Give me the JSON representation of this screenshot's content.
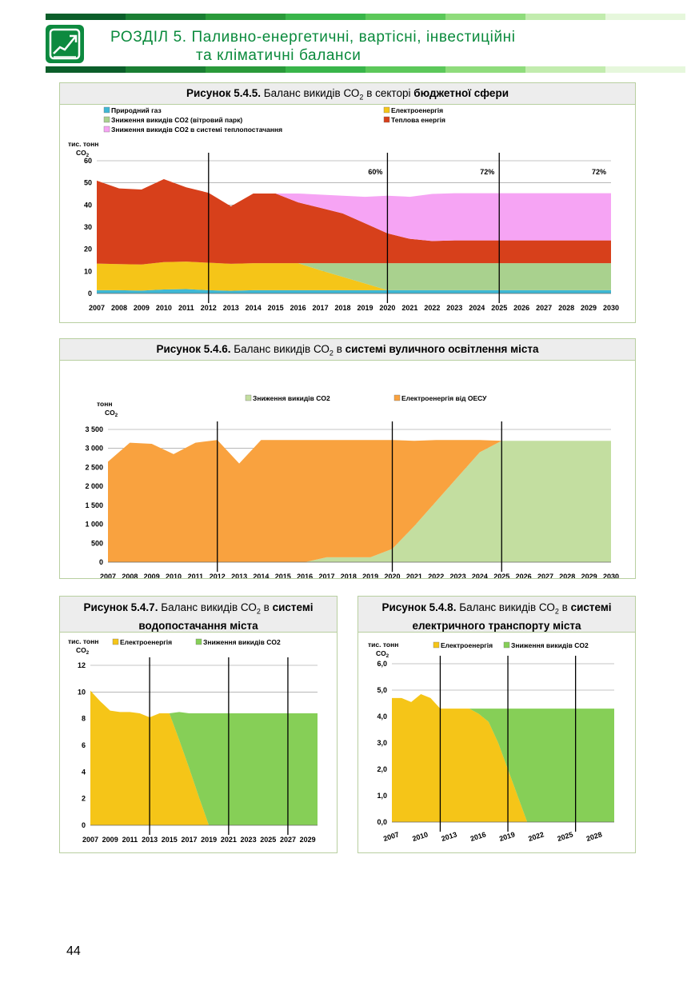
{
  "header": {
    "section_prefix": "РОЗДІЛ 5.",
    "title_line1": "Паливно-енергетичні,  вартісні,  інвестиційні",
    "title_line2": "та  кліматичні  баланси"
  },
  "page_number": "44",
  "colors": {
    "green_dark": "#0d8a3f",
    "gas": "#3fb8d4",
    "electricity": "#f5c518",
    "wind_reduction": "#a9d18e",
    "heat": "#d7401b",
    "heat_reduction": "#f6a4f4",
    "street_reduction": "#c3dea0",
    "street_electricity": "#f9a23f",
    "water_reduction": "#86cf57"
  },
  "figures": {
    "f545": {
      "num": "Рисунок 5.4.5.",
      "caption_plain": "Баланс викидів СО",
      "caption_after_sub": "в секторі",
      "caption_bold": "бюджетної сфери",
      "sub": "2"
    },
    "f546": {
      "num": "Рисунок 5.4.6.",
      "caption_plain": "Баланс викидів СО",
      "caption_after_sub": "в",
      "caption_bold": "системі вуличного освітлення міста",
      "sub": "2"
    },
    "f547": {
      "num": "Рисунок 5.4.7.",
      "caption_plain": "Баланс викидів СО",
      "caption_after_sub": "в",
      "caption_bold": "системі",
      "caption_line2": "водопостачання міста",
      "sub": "2"
    },
    "f548": {
      "num": "Рисунок 5.4.8.",
      "caption_plain": "Баланс викидів СО",
      "caption_after_sub": "в",
      "caption_bold": "системі",
      "caption_line2": "електричного транспорту міста",
      "sub": "2"
    }
  },
  "chart_data": [
    {
      "id": "budget_sector",
      "type": "area",
      "stacked": true,
      "ylabel_line1": "тис. тонн",
      "ylabel_line2": "CO",
      "ylabel_sub": "2",
      "ylim": [
        0,
        60
      ],
      "yticks": [
        "0",
        "10",
        "20",
        "30",
        "40",
        "50",
        "60"
      ],
      "x": [
        "2007",
        "2008",
        "2009",
        "2010",
        "2011",
        "2012",
        "2013",
        "2014",
        "2015",
        "2016",
        "2017",
        "2018",
        "2019",
        "2020",
        "2021",
        "2022",
        "2023",
        "2024",
        "2025",
        "2026",
        "2027",
        "2028",
        "2029",
        "2030"
      ],
      "series": [
        {
          "name": "Природний газ",
          "color": "#3fb8d4",
          "values": [
            1.5,
            1.5,
            1.3,
            1.8,
            2.0,
            1.5,
            1.2,
            1.5,
            1.5,
            1.5,
            1.5,
            1.5,
            1.5,
            1.5,
            1.5,
            1.5,
            1.5,
            1.5,
            1.5,
            1.5,
            1.5,
            1.5,
            1.5,
            1.5
          ]
        },
        {
          "name": "Електроенергія",
          "color": "#f5c518",
          "values": [
            12.0,
            11.8,
            11.8,
            12.4,
            12.4,
            12.4,
            12.2,
            12.2,
            12.2,
            12.2,
            9.0,
            6.0,
            3.0,
            0,
            0,
            0,
            0,
            0,
            0,
            0,
            0,
            0,
            0,
            0
          ]
        },
        {
          "name": "Зниження викидів CO2  (вітровий парк)",
          "color": "#a9d18e",
          "values": [
            0,
            0,
            0,
            0,
            0,
            0,
            0,
            0,
            0,
            0,
            3.2,
            6.2,
            9.2,
            12.2,
            12.2,
            12.2,
            12.2,
            12.2,
            12.2,
            12.2,
            12.2,
            12.2,
            12.2,
            12.2
          ]
        },
        {
          "name": "Теплова енергія",
          "color": "#d7401b",
          "values": [
            37.5,
            34.2,
            33.9,
            37.5,
            33.6,
            31.6,
            26.0,
            31.5,
            31.5,
            27.5,
            25.0,
            22.5,
            18.0,
            13.5,
            11.0,
            10.0,
            10.3,
            10.3,
            10.3,
            10.3,
            10.3,
            10.3,
            10.3,
            10.3
          ]
        },
        {
          "name": "Зниження викидів CO2  в системі теплопостачання",
          "color": "#f6a4f4",
          "values": [
            0,
            0,
            0,
            0,
            0,
            0,
            0,
            0,
            0,
            4.0,
            6.0,
            8.0,
            12.0,
            17.0,
            19.0,
            21.3,
            21.3,
            21.3,
            21.3,
            21.3,
            21.3,
            21.3,
            21.3,
            21.3
          ]
        }
      ],
      "vlines": [
        "2012",
        "2020",
        "2025"
      ],
      "annotations": [
        {
          "text": "60%",
          "x": "2020"
        },
        {
          "text": "72%",
          "x": "2025"
        },
        {
          "text": "72%",
          "x": "2030"
        }
      ]
    },
    {
      "id": "street_lighting",
      "type": "area",
      "stacked": true,
      "ylabel_line1": "тонн",
      "ylabel_line2": "CO",
      "ylabel_sub": "2",
      "ylim": [
        0,
        3500
      ],
      "yticks": [
        "0",
        "500",
        "1 000",
        "1 500",
        "2 000",
        "2 500",
        "3 000",
        "3 500"
      ],
      "x": [
        "2007",
        "2008",
        "2009",
        "2010",
        "2011",
        "2012",
        "2013",
        "2014",
        "2015",
        "2016",
        "2017",
        "2018",
        "2019",
        "2020",
        "2021",
        "2022",
        "2023",
        "2024",
        "2025",
        "2026",
        "2027",
        "2028",
        "2029",
        "2030"
      ],
      "series": [
        {
          "name": "Зниження викидів CO2",
          "color": "#c3dea0",
          "values": [
            0,
            0,
            0,
            0,
            0,
            0,
            0,
            0,
            0,
            0,
            130,
            130,
            130,
            350,
            950,
            1600,
            2250,
            2900,
            3200,
            3200,
            3200,
            3200,
            3200,
            3200
          ]
        },
        {
          "name": "Електроенергія від ОЕСУ",
          "color": "#f9a23f",
          "values": [
            2650,
            3150,
            3120,
            2850,
            3150,
            3220,
            2600,
            3220,
            3220,
            3220,
            3090,
            3090,
            3090,
            2870,
            2250,
            1620,
            970,
            320,
            0,
            0,
            0,
            0,
            0,
            0
          ]
        }
      ],
      "vlines": [
        "2012",
        "2020",
        "2025"
      ]
    },
    {
      "id": "water_supply",
      "type": "area",
      "stacked": true,
      "ylabel_line1": "тис. тонн",
      "ylabel_line2": "CO",
      "ylabel_sub": "2",
      "ylim": [
        0,
        12
      ],
      "yticks": [
        "0",
        "2",
        "4",
        "6",
        "8",
        "10",
        "12"
      ],
      "x": [
        "2007",
        "2008",
        "2009",
        "2010",
        "2011",
        "2012",
        "2013",
        "2014",
        "2015",
        "2016",
        "2017",
        "2018",
        "2019",
        "2020",
        "2021",
        "2022",
        "2023",
        "2024",
        "2025",
        "2026",
        "2027",
        "2028",
        "2029",
        "2030"
      ],
      "xtick_labels": [
        "2007",
        "2009",
        "2011",
        "2013",
        "2015",
        "2017",
        "2019",
        "2021",
        "2023",
        "2025",
        "2027",
        "2029"
      ],
      "series": [
        {
          "name": "Електроенергія",
          "color": "#f5c518",
          "values": [
            10.1,
            9.3,
            8.6,
            8.5,
            8.5,
            8.4,
            8.1,
            8.4,
            8.4,
            6.4,
            4.3,
            2.1,
            0,
            0,
            0,
            0,
            0,
            0,
            0,
            0,
            0,
            0,
            0,
            0
          ]
        },
        {
          "name": "Зниження викидів CO2",
          "color": "#86cf57",
          "values": [
            0,
            0,
            0,
            0,
            0,
            0,
            0,
            0,
            0,
            2.1,
            4.1,
            6.3,
            8.4,
            8.4,
            8.4,
            8.4,
            8.4,
            8.4,
            8.4,
            8.4,
            8.4,
            8.4,
            8.4,
            8.4
          ]
        }
      ],
      "vlines": [
        "2013",
        "2021",
        "2027"
      ]
    },
    {
      "id": "electric_transport",
      "type": "area",
      "stacked": true,
      "ylabel_line1": "тис. тонн",
      "ylabel_line2": "CO",
      "ylabel_sub": "2",
      "ylim": [
        0,
        6
      ],
      "yticks": [
        "0,0",
        "1,0",
        "2,0",
        "3,0",
        "4,0",
        "5,0",
        "6,0"
      ],
      "x": [
        "2007",
        "2008",
        "2009",
        "2010",
        "2011",
        "2012",
        "2013",
        "2014",
        "2015",
        "2016",
        "2017",
        "2018",
        "2019",
        "2020",
        "2021",
        "2022",
        "2023",
        "2024",
        "2025",
        "2026",
        "2027",
        "2028",
        "2029",
        "2030"
      ],
      "xtick_labels": [
        "2007",
        "2010",
        "2013",
        "2016",
        "2019",
        "2022",
        "2025",
        "2028"
      ],
      "series": [
        {
          "name": "Електроенергія",
          "color": "#f5c518",
          "values": [
            4.7,
            4.7,
            4.55,
            4.85,
            4.7,
            4.3,
            4.3,
            4.3,
            4.3,
            4.1,
            3.8,
            3.0,
            2.0,
            1.0,
            0,
            0,
            0,
            0,
            0,
            0,
            0,
            0,
            0,
            0
          ]
        },
        {
          "name": "Зниження викидів CO2",
          "color": "#86cf57",
          "values": [
            0,
            0,
            0,
            0,
            0,
            0,
            0,
            0,
            0,
            0.2,
            0.5,
            1.3,
            2.3,
            3.3,
            4.3,
            4.3,
            4.3,
            4.3,
            4.3,
            4.3,
            4.3,
            4.3,
            4.3,
            4.3
          ]
        }
      ],
      "vlines": [
        "2012",
        "2019",
        "2026"
      ]
    }
  ]
}
